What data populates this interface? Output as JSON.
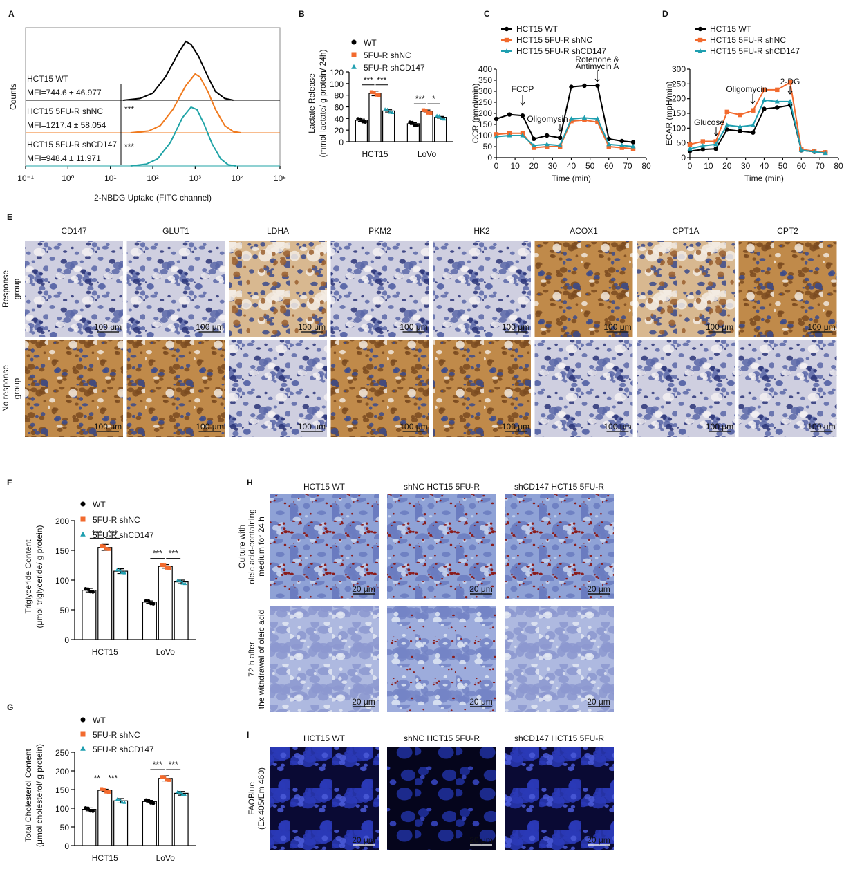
{
  "panel_labels": [
    "A",
    "B",
    "C",
    "D",
    "E",
    "F",
    "G",
    "H",
    "I"
  ],
  "chart_data": [
    {
      "type": "histogram-overlay",
      "x_label": "2-NBDG Uptake (FITC channel)",
      "y_label": "Counts",
      "log_x": true,
      "xlim": [
        0.1,
        100000
      ],
      "xticks": [
        {
          "value": 0.1,
          "label": "10⁻¹"
        },
        {
          "value": 1,
          "label": "10⁰"
        },
        {
          "value": 10,
          "label": "10¹"
        },
        {
          "value": 100,
          "label": "10²"
        },
        {
          "value": 1000,
          "label": "10³"
        },
        {
          "value": 10000,
          "label": "10⁴"
        },
        {
          "value": 100000,
          "label": "10⁵"
        }
      ],
      "series": [
        {
          "name": "HCT15 WT",
          "label": "MFI=744.6 ± 46.977",
          "color": "#000000",
          "x": [
            20,
            50,
            100,
            200,
            400,
            600,
            800,
            1200,
            2000,
            3000,
            5000,
            8000
          ],
          "values": [
            0,
            3,
            12,
            40,
            80,
            100,
            95,
            75,
            40,
            15,
            3,
            0
          ]
        },
        {
          "name": "HCT15 5FU-R shNC",
          "label": "MFI=1217.4 ± 58.054",
          "color": "#f07a1e",
          "x": [
            30,
            80,
            150,
            300,
            600,
            1000,
            1300,
            2000,
            3000,
            5000,
            8000,
            12000
          ],
          "values": [
            0,
            3,
            12,
            40,
            80,
            100,
            95,
            70,
            40,
            12,
            2,
            0
          ]
        },
        {
          "name": "HCT15 5FU-R shCD147",
          "label": "MFI=948.4 ± 11.971",
          "color": "#1fa3a6",
          "x": [
            30,
            70,
            130,
            260,
            500,
            800,
            1100,
            1600,
            2500,
            4000,
            6000,
            9000
          ],
          "values": [
            0,
            3,
            12,
            40,
            82,
            100,
            96,
            72,
            38,
            12,
            2,
            0
          ]
        }
      ],
      "significance": [
        "***",
        "***"
      ]
    },
    {
      "type": "bar",
      "y_label": [
        "Lactate Release",
        "(mmol lactate/ g protein/ 24h)"
      ],
      "categories": [
        "HCT15",
        "LoVo"
      ],
      "series": [
        {
          "name": "WT",
          "color": "#000000",
          "marker": "circle",
          "values": [
            37,
            31
          ],
          "errors": [
            2,
            1.5
          ]
        },
        {
          "name": "5FU-R shNC",
          "color": "#f26a2e",
          "marker": "square",
          "values": [
            83,
            52
          ],
          "errors": [
            4,
            2.5
          ]
        },
        {
          "name": "5FU-R shCD147",
          "color": "#1f9fb0",
          "marker": "triangle",
          "values": [
            53,
            42
          ],
          "errors": [
            2,
            1.5
          ]
        }
      ],
      "ylim": [
        0,
        120
      ],
      "yticks": [
        0,
        20,
        40,
        60,
        80,
        100,
        120
      ],
      "significance": [
        [
          "***",
          "***"
        ],
        [
          "***",
          "*"
        ]
      ]
    },
    {
      "type": "line",
      "y_label": "OCR (pmol/min)",
      "x_label": "Time (min)",
      "x": [
        0,
        7,
        14,
        20,
        27,
        34,
        40,
        47,
        54,
        60,
        67,
        73
      ],
      "series": [
        {
          "name": "HCT15 WT",
          "color": "#000000",
          "marker": "circle",
          "values": [
            175,
            195,
            190,
            85,
            100,
            90,
            320,
            325,
            325,
            85,
            75,
            70
          ]
        },
        {
          "name": "HCT15 5FU-R shNC",
          "color": "#f26a2e",
          "marker": "square",
          "values": [
            105,
            110,
            110,
            45,
            50,
            50,
            165,
            170,
            160,
            50,
            45,
            40
          ]
        },
        {
          "name": "HCT15 5FU-R shCD147",
          "color": "#1f9fb0",
          "marker": "triangle",
          "values": [
            95,
            100,
            100,
            55,
            60,
            55,
            175,
            180,
            175,
            60,
            55,
            50
          ]
        }
      ],
      "xlim": [
        0,
        80
      ],
      "xticks": [
        0,
        10,
        20,
        30,
        40,
        50,
        60,
        70,
        80
      ],
      "ylim": [
        0,
        400
      ],
      "yticks": [
        0,
        50,
        100,
        150,
        200,
        250,
        300,
        350,
        400
      ],
      "annotations": [
        [
          "FCCP"
        ],
        [
          "Oligomysin"
        ],
        [
          "Rotenone &",
          "Antimycin A"
        ]
      ]
    },
    {
      "type": "line",
      "y_label": "ECAR (mpH/min)",
      "x_label": "Time (min)",
      "x": [
        0,
        7,
        14,
        20,
        27,
        34,
        40,
        47,
        54,
        60,
        67,
        73
      ],
      "series": [
        {
          "name": "HCT15 WT",
          "color": "#000000",
          "marker": "circle",
          "values": [
            22,
            28,
            30,
            95,
            90,
            85,
            165,
            170,
            178,
            25,
            20,
            18
          ]
        },
        {
          "name": "HCT15 5FU-R shNC",
          "color": "#f26a2e",
          "marker": "square",
          "values": [
            45,
            55,
            55,
            155,
            145,
            160,
            230,
            230,
            255,
            28,
            22,
            18
          ]
        },
        {
          "name": "HCT15 5FU-R shCD147",
          "color": "#1f9fb0",
          "marker": "triangle",
          "values": [
            30,
            40,
            45,
            110,
            105,
            110,
            195,
            190,
            190,
            25,
            20,
            15
          ]
        }
      ],
      "xlim": [
        0,
        80
      ],
      "xticks": [
        0,
        10,
        20,
        30,
        40,
        50,
        60,
        70,
        80
      ],
      "ylim": [
        0,
        300
      ],
      "yticks": [
        0,
        50,
        100,
        150,
        200,
        250,
        300
      ],
      "annotations": [
        [
          "Glucose"
        ],
        [
          "Oligomycin"
        ],
        [
          "2-DG"
        ]
      ]
    },
    {
      "type": "bar",
      "y_label": [
        "Triglyceride Content",
        "(μmol triglyceride/ g protein)"
      ],
      "categories": [
        "HCT15",
        "LoVo"
      ],
      "series": [
        {
          "name": "WT",
          "color": "#000000",
          "marker": "circle",
          "values": [
            83,
            63
          ],
          "errors": [
            3,
            2
          ]
        },
        {
          "name": "5FU-R shNC",
          "color": "#f26a2e",
          "marker": "square",
          "values": [
            155,
            123
          ],
          "errors": [
            5,
            3
          ]
        },
        {
          "name": "5FU-R shCD147",
          "color": "#1f9fb0",
          "marker": "triangle",
          "values": [
            115,
            97
          ],
          "errors": [
            4,
            3
          ]
        }
      ],
      "ylim": [
        0,
        200
      ],
      "yticks": [
        0,
        50,
        100,
        150,
        200
      ],
      "significance": [
        [
          "***",
          "***"
        ],
        [
          "***",
          "***"
        ]
      ]
    },
    {
      "type": "bar",
      "y_label": [
        "Total Cholesterol Content",
        "(μmol cholesterol/ g protein)"
      ],
      "categories": [
        "HCT15",
        "LoVo"
      ],
      "series": [
        {
          "name": "WT",
          "color": "#000000",
          "marker": "circle",
          "values": [
            97,
            118
          ],
          "errors": [
            4,
            3
          ]
        },
        {
          "name": "5FU-R shNC",
          "color": "#f26a2e",
          "marker": "square",
          "values": [
            148,
            180
          ],
          "errors": [
            3,
            7
          ]
        },
        {
          "name": "5FU-R shCD147",
          "color": "#1f9fb0",
          "marker": "triangle",
          "values": [
            120,
            140
          ],
          "errors": [
            6,
            5
          ]
        }
      ],
      "ylim": [
        0,
        250
      ],
      "yticks": [
        0,
        50,
        100,
        150,
        200,
        250
      ],
      "significance": [
        [
          "**",
          "***"
        ],
        [
          "***",
          "***"
        ]
      ]
    }
  ],
  "ihc": {
    "columns": [
      "CD147",
      "GLUT1",
      "LDHA",
      "PKM2",
      "HK2",
      "ACOX1",
      "CPT1A",
      "CPT2"
    ],
    "rows": [
      [
        "Response",
        "group"
      ],
      [
        "No response",
        "group"
      ]
    ],
    "scale_bar": "100 μm"
  },
  "oil_red": {
    "columns": [
      "HCT15 WT",
      "shNC HCT15 5FU-R",
      "shCD147 HCT15 5FU-R"
    ],
    "rows": [
      [
        "Culture with",
        "oleic acid-containing",
        "medium for 24 h"
      ],
      [
        "72 h after",
        "the withdrawal of oleic acid"
      ]
    ],
    "scale_bar": "20 μm"
  },
  "fao": {
    "columns": [
      "HCT15 WT",
      "shNC HCT15 5FU-R",
      "shCD147 HCT15 5FU-R"
    ],
    "rows": [
      [
        "FAOBlue",
        "(Ex 405/Em 460)"
      ]
    ],
    "scale_bar": "20 μm"
  }
}
